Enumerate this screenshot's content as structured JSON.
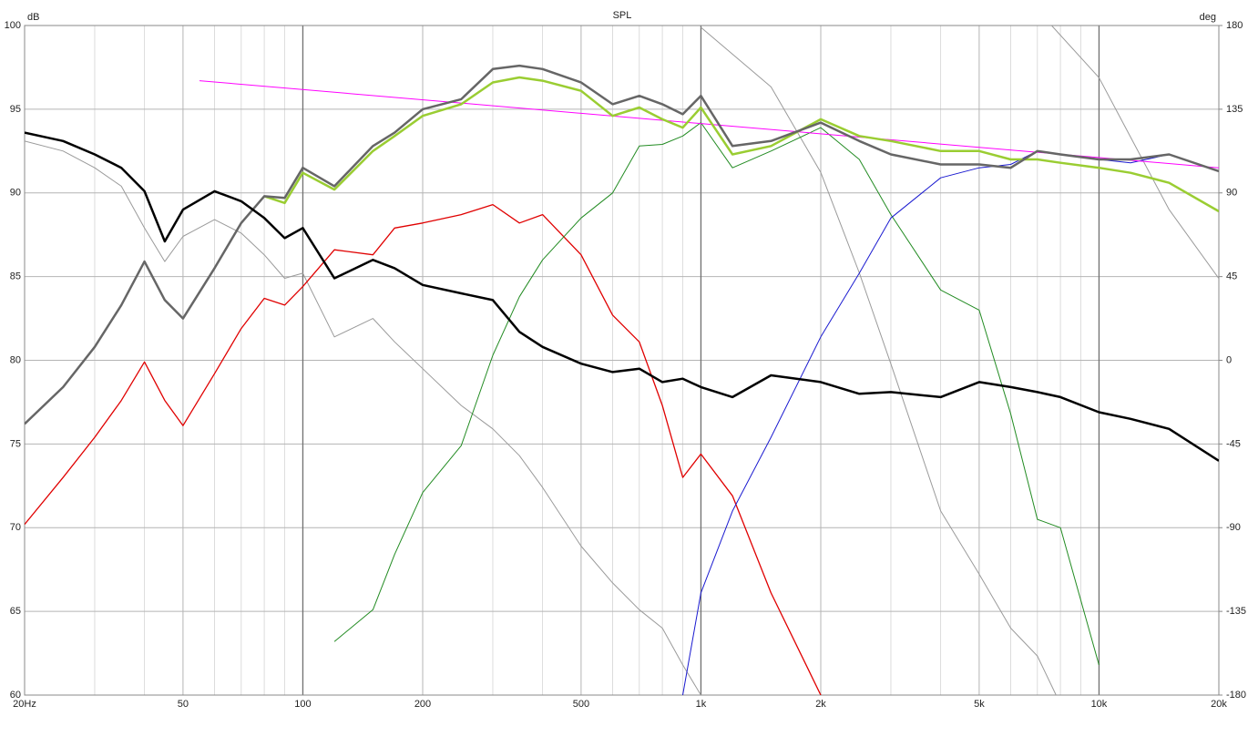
{
  "chart_data": {
    "type": "line",
    "title": "SPL",
    "ylabel": "dB",
    "y2label": "deg",
    "xlog": true,
    "grid": true,
    "x": [
      20,
      25,
      30,
      35,
      40,
      45,
      50,
      60,
      70,
      80,
      90,
      100,
      120,
      150,
      170,
      200,
      250,
      300,
      350,
      400,
      500,
      600,
      700,
      800,
      900,
      1000,
      1200,
      1500,
      2000,
      2500,
      3000,
      4000,
      5000,
      6000,
      7000,
      8000,
      10000,
      12000,
      15000,
      20000
    ],
    "xlim": [
      20,
      20000
    ],
    "xticks": [
      {
        "value": 20,
        "label": "20Hz"
      },
      50,
      100,
      200,
      500,
      {
        "value": 1000,
        "label": "1k"
      },
      {
        "value": 2000,
        "label": "2k"
      },
      {
        "value": 5000,
        "label": "5k"
      },
      {
        "value": 10000,
        "label": "10k"
      },
      {
        "value": 20000,
        "label": "20k"
      }
    ],
    "xminorticks": [
      30,
      40,
      60,
      70,
      80,
      90,
      300,
      400,
      600,
      700,
      800,
      900,
      3000,
      4000,
      6000,
      7000,
      8000,
      9000
    ],
    "ylim": [
      60,
      100
    ],
    "yticks": [
      60,
      65,
      70,
      75,
      80,
      85,
      90,
      95,
      100
    ],
    "y2lim": [
      -180,
      180
    ],
    "y2ticks": [
      -180,
      -135,
      -90,
      -45,
      0,
      45,
      90,
      135,
      180
    ],
    "series": [
      {
        "color": "#9a9a9a",
        "width": 1,
        "axis": "y2",
        "x": [
          1000,
          1500,
          2000,
          2500,
          3000,
          4000,
          5000,
          6000,
          7000,
          7800,
          7700,
          7600,
          10000,
          12000,
          15000,
          20000
        ],
        "values": [
          179,
          147,
          101,
          47,
          -2,
          -81,
          -115,
          -144,
          -159,
          -180,
          null,
          180,
          152,
          120,
          81,
          44
        ]
      },
      {
        "color": "#9a9a9a",
        "width": 1,
        "values": [
          93.1,
          92.5,
          91.5,
          90.4,
          87.9,
          85.9,
          87.4,
          88.4,
          87.6,
          86.3,
          84.9,
          85.2,
          81.4,
          82.5,
          81.1,
          79.5,
          77.3,
          75.9,
          74.3,
          72.4,
          68.9,
          66.7,
          65.1,
          64.0,
          61.8,
          60.0,
          null,
          null,
          null,
          null,
          null,
          null,
          null,
          null,
          null,
          null,
          null,
          null,
          null,
          null
        ]
      },
      {
        "color": "#e00000",
        "width": 1.3,
        "values": [
          70.2,
          73.0,
          75.4,
          77.6,
          79.9,
          77.6,
          76.1,
          79.2,
          81.9,
          83.7,
          83.3,
          84.4,
          86.6,
          86.3,
          87.9,
          88.2,
          88.7,
          89.3,
          88.2,
          88.7,
          86.3,
          82.7,
          81.1,
          77.3,
          73.0,
          74.4,
          71.9,
          66.1,
          60.0,
          null,
          null,
          null,
          null,
          null,
          null,
          null,
          null,
          null,
          null,
          null
        ]
      },
      {
        "color": "#228b22",
        "width": 1,
        "values": [
          null,
          null,
          null,
          null,
          null,
          null,
          null,
          null,
          null,
          null,
          null,
          null,
          63.2,
          65.1,
          68.4,
          72.1,
          74.9,
          80.3,
          83.8,
          86.0,
          88.5,
          90.0,
          92.8,
          92.9,
          93.4,
          94.2,
          91.5,
          92.5,
          93.9,
          92.0,
          88.7,
          84.2,
          83.0,
          76.8,
          70.5,
          70.0,
          61.8,
          null,
          null,
          null
        ]
      },
      {
        "color": "#1a1ad0",
        "width": 1,
        "values": [
          null,
          null,
          null,
          null,
          null,
          null,
          null,
          null,
          null,
          null,
          null,
          null,
          null,
          null,
          null,
          null,
          null,
          null,
          null,
          null,
          null,
          null,
          null,
          null,
          60.0,
          66.1,
          71.0,
          75.4,
          81.4,
          85.2,
          88.5,
          90.9,
          91.5,
          91.7,
          92.5,
          92.3,
          92.0,
          91.8,
          92.3,
          91.3
        ]
      },
      {
        "color": "#ff00ff",
        "width": 1,
        "x": [
          55,
          20000
        ],
        "values": [
          96.7,
          91.5
        ]
      },
      {
        "color": "#9acd32",
        "width": 2.5,
        "values": [
          null,
          null,
          null,
          null,
          null,
          null,
          null,
          null,
          null,
          89.8,
          89.4,
          91.2,
          90.2,
          92.5,
          93.4,
          94.6,
          95.3,
          96.6,
          96.9,
          96.7,
          96.1,
          94.6,
          95.1,
          94.4,
          93.9,
          95.1,
          92.3,
          92.8,
          94.4,
          93.4,
          93.1,
          92.5,
          92.5,
          92.0,
          92.0,
          91.8,
          91.5,
          91.2,
          90.6,
          88.9
        ]
      },
      {
        "color": "#666666",
        "width": 2.5,
        "values": [
          76.2,
          78.4,
          80.8,
          83.3,
          85.9,
          83.6,
          82.5,
          85.5,
          88.2,
          89.8,
          89.7,
          91.5,
          90.4,
          92.8,
          93.6,
          95.0,
          95.6,
          97.4,
          97.6,
          97.4,
          96.6,
          95.3,
          95.8,
          95.3,
          94.7,
          95.8,
          92.8,
          93.1,
          94.2,
          93.1,
          92.3,
          91.7,
          91.7,
          91.5,
          92.5,
          92.3,
          92.0,
          92.0,
          92.3,
          91.3
        ]
      },
      {
        "color": "#000000",
        "width": 2.5,
        "values": [
          93.6,
          93.1,
          92.3,
          91.5,
          90.1,
          87.1,
          89.0,
          90.1,
          89.5,
          88.5,
          87.3,
          87.9,
          84.9,
          86.0,
          85.5,
          84.5,
          84.0,
          83.6,
          81.7,
          80.8,
          79.8,
          79.3,
          79.5,
          78.7,
          78.9,
          78.4,
          77.8,
          79.1,
          78.7,
          78.0,
          78.1,
          77.8,
          78.7,
          78.4,
          78.1,
          77.8,
          76.9,
          76.5,
          75.9,
          74.0
        ]
      }
    ]
  }
}
